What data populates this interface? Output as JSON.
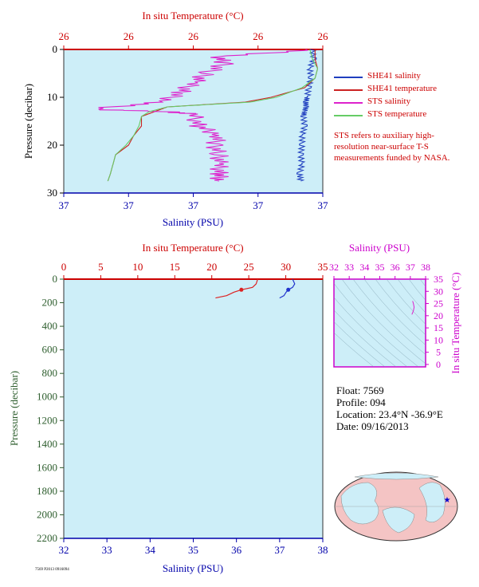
{
  "chart_data": [
    {
      "type": "line",
      "name_key": "upper-profile",
      "title_top_axis": "In situ Temperature (°C)",
      "top_tick_labels": [
        "26",
        "26",
        "26",
        "26",
        "26"
      ],
      "xlabel": "Salinity (PSU)",
      "bottom_tick_labels": [
        "37",
        "37",
        "37",
        "37",
        "37"
      ],
      "ylabel": "Pressure (decibar)",
      "y_tick_labels": [
        "0",
        "10",
        "20",
        "30"
      ],
      "ylim": [
        30,
        0
      ],
      "grid": false,
      "legend_position": "right",
      "series": [
        {
          "name": "SHE41 salinity",
          "color": "#1f3fbf",
          "x_frac": [
            0.96,
            0.965,
            0.95,
            0.955,
            0.945,
            0.94,
            0.935,
            0.935,
            0.93,
            0.925,
            0.93,
            0.92,
            0.92,
            0.915,
            0.92,
            0.91,
            0.915
          ],
          "y": [
            0,
            2,
            4,
            6,
            8,
            10,
            11,
            12,
            13,
            14,
            16,
            18,
            20,
            22,
            24,
            26,
            27.5
          ]
        },
        {
          "name": "SHE41 temperature",
          "color": "#cc2222",
          "x_frac": [
            0.97,
            0.97,
            0.98,
            0.97,
            0.93,
            0.8,
            0.7,
            0.4,
            0.35,
            0.3,
            0.3,
            0.27,
            0.25,
            0.2,
            0.19,
            0.18,
            0.17
          ],
          "y": [
            0,
            2,
            4,
            6,
            8,
            10,
            11,
            12,
            13,
            14,
            16,
            18,
            20,
            22,
            24,
            26,
            27.5
          ]
        },
        {
          "name": "STS salinity",
          "color": "#dd22cc",
          "x_frac": [
            0.97,
            0.6,
            0.62,
            0.55,
            0.5,
            0.45,
            0.38,
            0.1,
            0.4,
            0.5,
            0.52,
            0.6,
            0.58,
            0.6,
            0.6,
            0.6,
            0.6
          ],
          "y": [
            0,
            1.5,
            3,
            5,
            7,
            9,
            11,
            12.5,
            13,
            13.5,
            16,
            18,
            20,
            22,
            24,
            26,
            27.5
          ]
        },
        {
          "name": "STS temperature",
          "color": "#66cc66",
          "x_frac": [
            0.95,
            0.96,
            0.98,
            0.97,
            0.92,
            0.82,
            0.72,
            0.4,
            0.33,
            0.3,
            0.29,
            0.27,
            0.24,
            0.2,
            0.19,
            0.18,
            0.17
          ],
          "y": [
            0,
            2,
            4,
            6,
            8,
            10,
            11,
            12,
            13,
            14,
            16,
            18,
            20,
            22,
            24,
            26,
            27.5
          ]
        }
      ],
      "note": "STS refers to auxiliary high-resolution near-surface T-S measurements funded by NASA."
    },
    {
      "type": "line",
      "name_key": "lower-profile",
      "title_top_axis": "In situ Temperature (°C)",
      "top_tick_labels": [
        "0",
        "5",
        "10",
        "15",
        "20",
        "25",
        "30",
        "35"
      ],
      "top_ticks": [
        0,
        5,
        10,
        15,
        20,
        25,
        30,
        35
      ],
      "xlabel": "Salinity (PSU)",
      "bottom_tick_labels": [
        "32",
        "33",
        "34",
        "35",
        "36",
        "37",
        "38"
      ],
      "bottom_ticks": [
        32,
        33,
        34,
        35,
        36,
        37,
        38
      ],
      "ylabel": "Pressure (decibar)",
      "y_tick_labels": [
        "0",
        "200",
        "400",
        "600",
        "800",
        "1000",
        "1200",
        "1400",
        "1600",
        "1800",
        "2000",
        "2200"
      ],
      "y_ticks": [
        0,
        200,
        400,
        600,
        800,
        1000,
        1200,
        1400,
        1600,
        1800,
        2000,
        2200
      ],
      "ylim": [
        2200,
        0
      ],
      "grid": false,
      "series": [
        {
          "name": "temperature",
          "color": "#dd2222",
          "x": [
            26.2,
            26.0,
            25.5,
            24.0,
            23.0,
            22.0,
            20.5
          ],
          "y": [
            0,
            40,
            70,
            90,
            110,
            140,
            160
          ]
        },
        {
          "name": "salinity",
          "color": "#2233cc",
          "x": [
            37.3,
            37.35,
            37.3,
            37.2,
            37.15,
            37.1,
            37.0
          ],
          "y": [
            0,
            40,
            70,
            90,
            110,
            140,
            160
          ]
        }
      ]
    },
    {
      "type": "scatter",
      "name_key": "ts-diagram",
      "title": "Salinity (PSU)",
      "top_tick_labels": [
        "32",
        "33",
        "34",
        "35",
        "36",
        "37",
        "38"
      ],
      "ylabel": "In situ Temperature (°C)",
      "y_tick_labels": [
        "0",
        "5",
        "10",
        "15",
        "20",
        "25",
        "30",
        "35"
      ],
      "xlim": [
        32,
        38
      ],
      "ylim": [
        -1,
        35
      ],
      "series": [
        {
          "name": "profile",
          "color": "#dd22cc",
          "x": [
            37.1,
            37.2,
            37.25,
            37.2,
            37.15
          ],
          "y": [
            20.5,
            22,
            23.5,
            25,
            26
          ]
        }
      ]
    }
  ],
  "float_info": {
    "float": "Float:  7569",
    "profile": "Profile:  094",
    "location": "Location:  23.4°N  -36.9°E",
    "date": "Date:  09/16/2013"
  },
  "colors": {
    "plot_bg": "#cdeef8",
    "temp_axis": "#cc0000",
    "sal_axis": "#0000aa",
    "pressure_axis": "#2e5e2e",
    "ts_axis": "#cc00cc"
  },
  "credit": "7569 P2013 0916094"
}
